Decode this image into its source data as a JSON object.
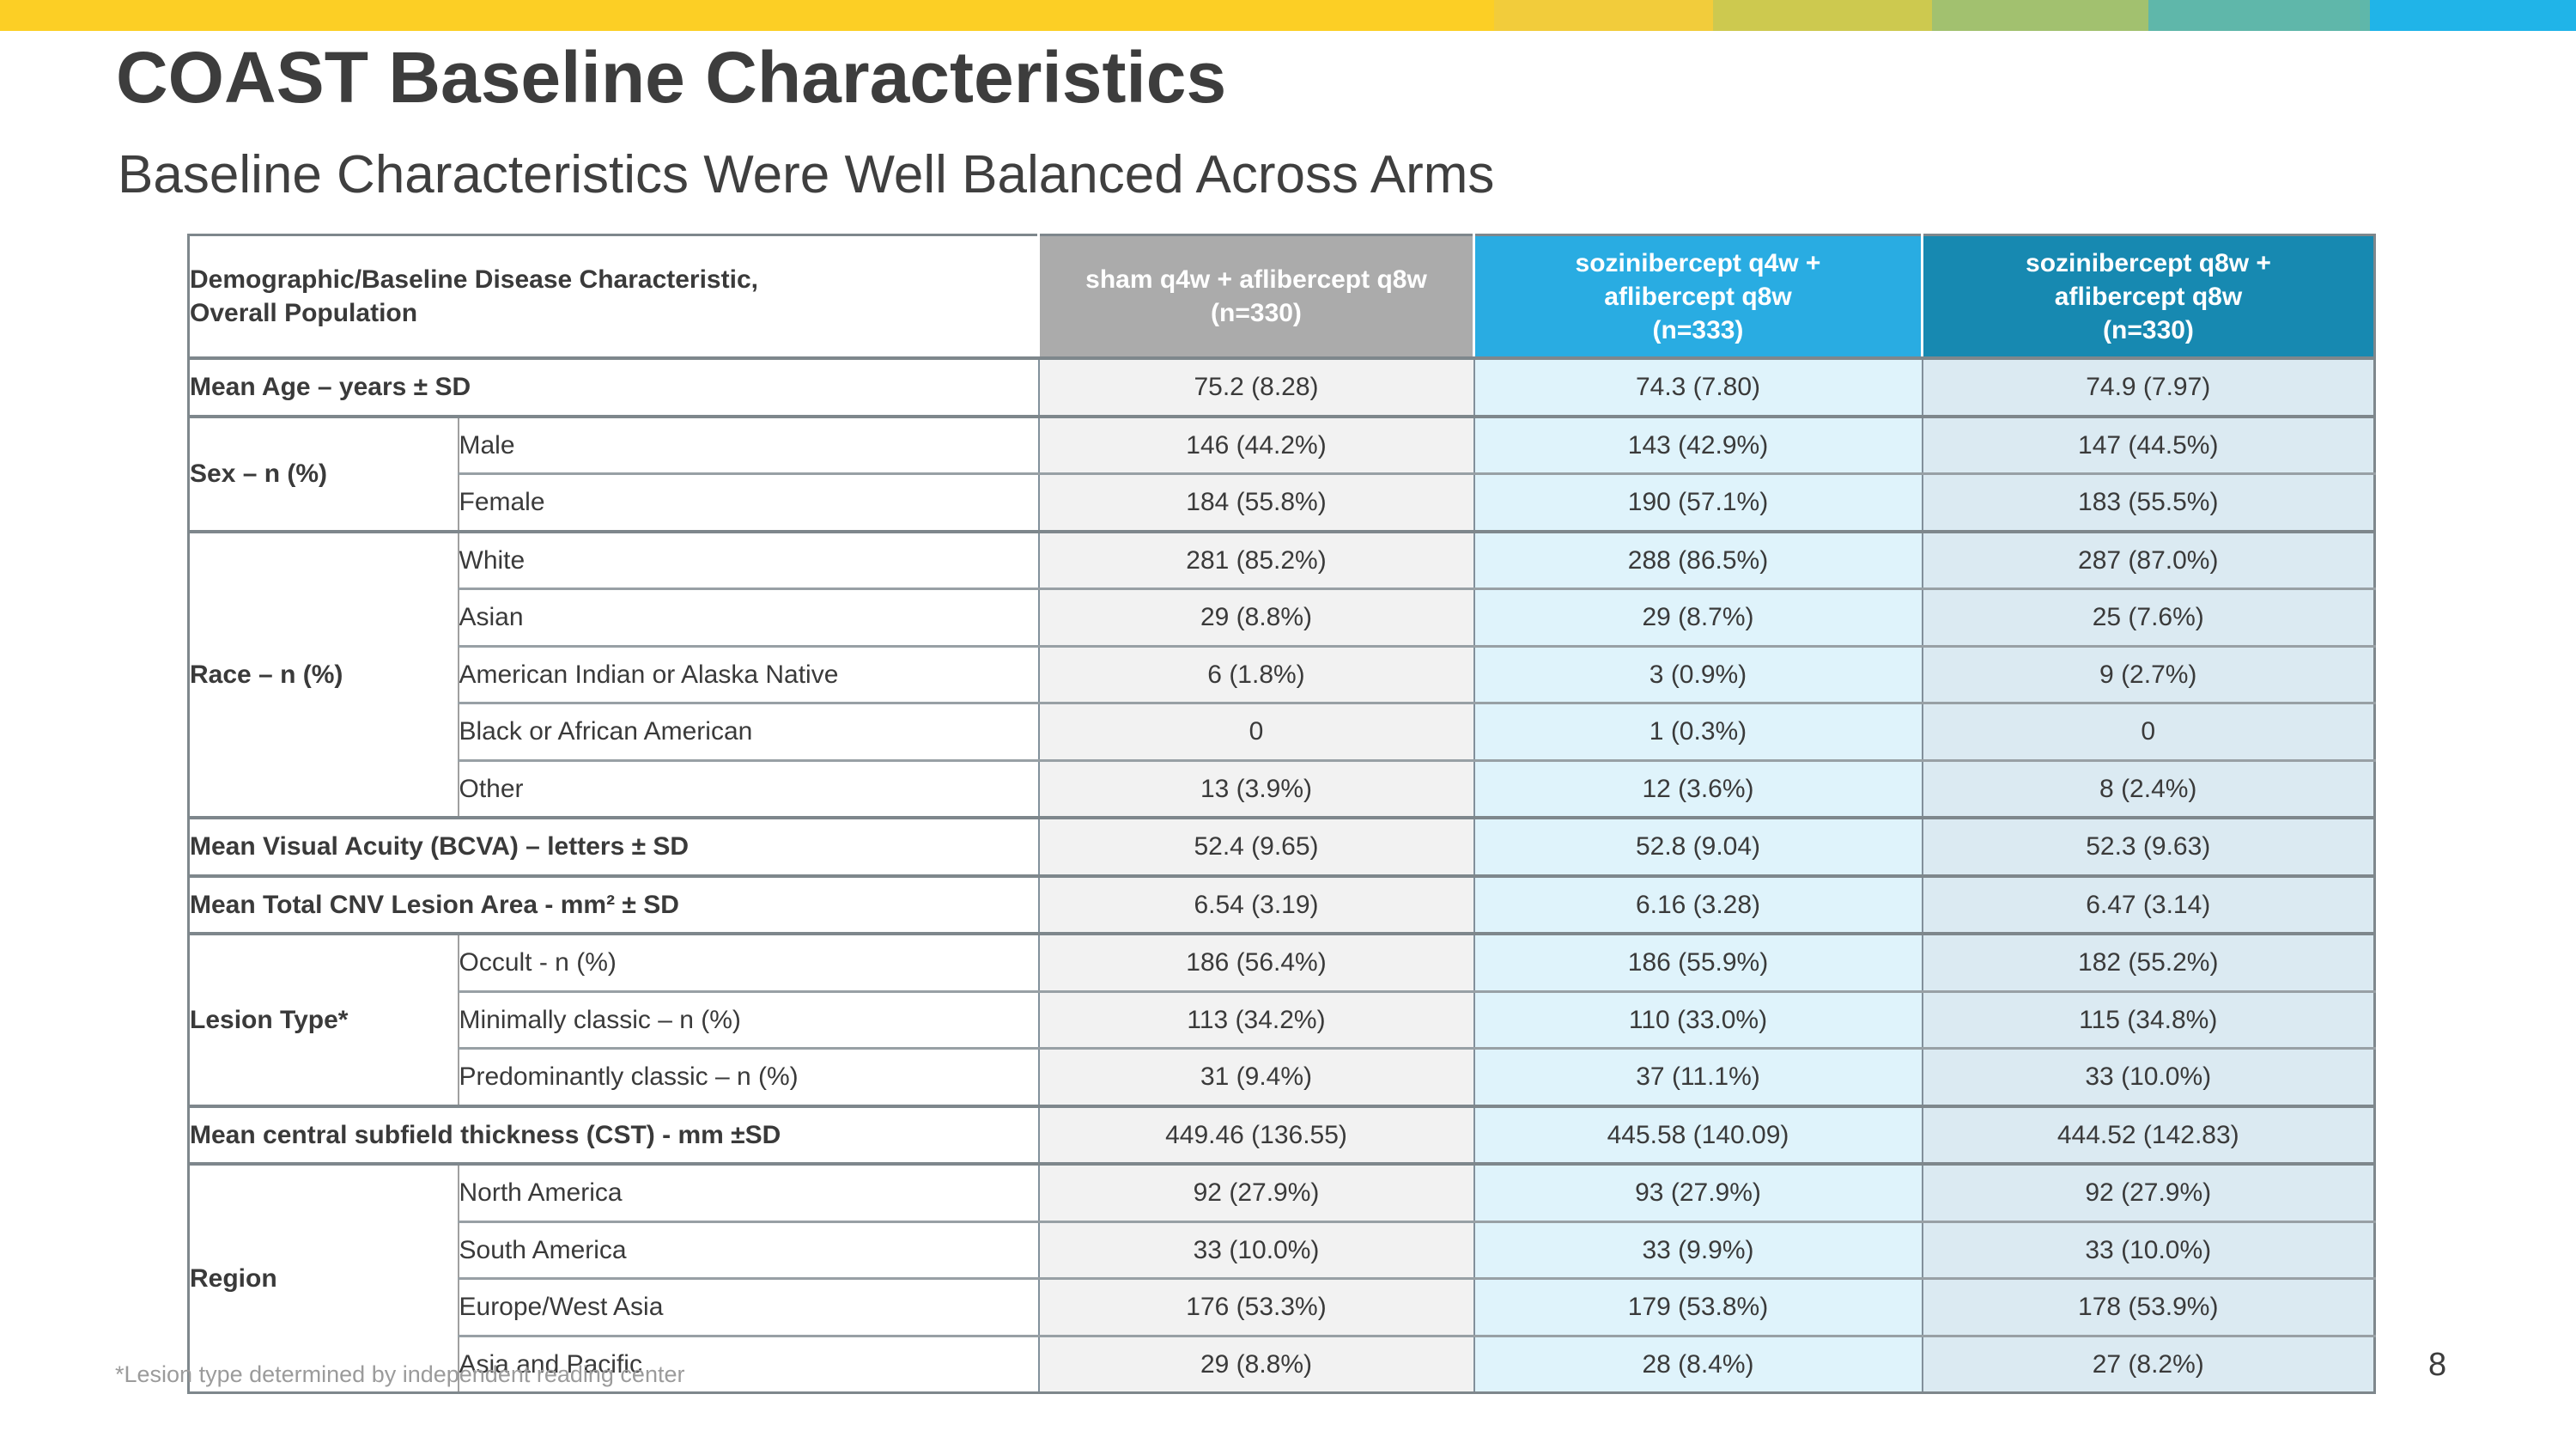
{
  "slide": {
    "title": "COAST Baseline Characteristics",
    "subtitle": "Baseline Characteristics Were Well Balanced Across Arms",
    "footnote": "*Lesion type determined by independent reading center",
    "page_number": "8",
    "top_bar_colors": [
      "#FCCF25",
      "#F2CC3B",
      "#CDC94F",
      "#A2C16F",
      "#5FB7AA",
      "#20B4E8"
    ]
  },
  "table": {
    "header": {
      "characteristic_label": "Demographic/Baseline Disease Characteristic,\nOverall Population",
      "arms": [
        {
          "label": "sham q4w + aflibercept q8w\n(n=330)",
          "bg": "#ABABAB"
        },
        {
          "label": "sozinibercept q4w +\naflibercept q8w\n(n=333)",
          "bg": "#29ACE2"
        },
        {
          "label": "sozinibercept q8w +\naflibercept q8w\n(n=330)",
          "bg": "#1789B1"
        }
      ]
    },
    "column_colors": [
      "#F2F2F2",
      "#DFF3FB",
      "#DBEAF2"
    ],
    "sections": [
      {
        "label": "Mean Age – years ± SD",
        "rows": [
          {
            "sublabel": null,
            "values": [
              "75.2 (8.28)",
              "74.3 (7.80)",
              "74.9 (7.97)"
            ]
          }
        ]
      },
      {
        "label": "Sex – n (%)",
        "rows": [
          {
            "sublabel": "Male",
            "values": [
              "146 (44.2%)",
              "143 (42.9%)",
              "147 (44.5%)"
            ]
          },
          {
            "sublabel": "Female",
            "values": [
              "184 (55.8%)",
              "190 (57.1%)",
              "183 (55.5%)"
            ]
          }
        ]
      },
      {
        "label": "Race – n (%)",
        "rows": [
          {
            "sublabel": "White",
            "values": [
              "281 (85.2%)",
              "288 (86.5%)",
              "287 (87.0%)"
            ]
          },
          {
            "sublabel": "Asian",
            "values": [
              "29 (8.8%)",
              "29 (8.7%)",
              "25 (7.6%)"
            ]
          },
          {
            "sublabel": "American Indian or Alaska Native",
            "values": [
              "6 (1.8%)",
              "3 (0.9%)",
              "9 (2.7%)"
            ]
          },
          {
            "sublabel": "Black or African American",
            "values": [
              "0",
              "1 (0.3%)",
              "0"
            ]
          },
          {
            "sublabel": "Other",
            "values": [
              "13 (3.9%)",
              "12 (3.6%)",
              "8 (2.4%)"
            ]
          }
        ]
      },
      {
        "label": "Mean Visual Acuity (BCVA) – letters ± SD",
        "rows": [
          {
            "sublabel": null,
            "values": [
              "52.4 (9.65)",
              "52.8 (9.04)",
              "52.3 (9.63)"
            ]
          }
        ]
      },
      {
        "label": "Mean Total CNV Lesion Area - mm² ± SD",
        "rows": [
          {
            "sublabel": null,
            "values": [
              "6.54 (3.19)",
              "6.16 (3.28)",
              "6.47 (3.14)"
            ]
          }
        ]
      },
      {
        "label": "Lesion Type*",
        "rows": [
          {
            "sublabel": "Occult - n (%)",
            "values": [
              "186 (56.4%)",
              "186 (55.9%)",
              "182 (55.2%)"
            ]
          },
          {
            "sublabel": "Minimally classic – n (%)",
            "values": [
              "113 (34.2%)",
              "110 (33.0%)",
              "115 (34.8%)"
            ]
          },
          {
            "sublabel": "Predominantly classic – n (%)",
            "values": [
              "31 (9.4%)",
              "37 (11.1%)",
              "33 (10.0%)"
            ]
          }
        ]
      },
      {
        "label": "Mean central subfield thickness (CST) - mm ±SD",
        "rows": [
          {
            "sublabel": null,
            "values": [
              "449.46 (136.55)",
              "445.58 (140.09)",
              "444.52 (142.83)"
            ]
          }
        ]
      },
      {
        "label": "Region",
        "rows": [
          {
            "sublabel": "North America",
            "values": [
              "92 (27.9%)",
              "93 (27.9%)",
              "92 (27.9%)"
            ]
          },
          {
            "sublabel": "South America",
            "values": [
              "33 (10.0%)",
              "33 (9.9%)",
              "33 (10.0%)"
            ]
          },
          {
            "sublabel": "Europe/West Asia",
            "values": [
              "176 (53.3%)",
              "179 (53.8%)",
              "178 (53.9%)"
            ]
          },
          {
            "sublabel": "Asia and Pacific",
            "values": [
              "29 (8.8%)",
              "28 (8.4%)",
              "27 (8.2%)"
            ]
          }
        ]
      }
    ]
  }
}
